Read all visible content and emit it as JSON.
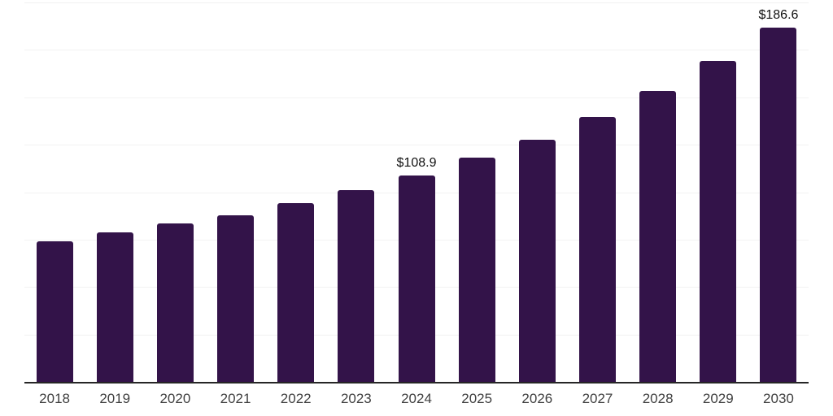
{
  "chart_data": {
    "type": "bar",
    "title": "",
    "categories": [
      "2018",
      "2019",
      "2020",
      "2021",
      "2022",
      "2023",
      "2024",
      "2025",
      "2026",
      "2027",
      "2028",
      "2029",
      "2030"
    ],
    "values": [
      74.2,
      79.0,
      83.7,
      88.0,
      94.3,
      101.2,
      108.9,
      118.1,
      127.7,
      139.6,
      153.3,
      169.0,
      186.6
    ],
    "data_labels": [
      {
        "category": "2024",
        "text": "$108.9"
      },
      {
        "category": "2030",
        "text": "$186.6"
      }
    ],
    "xlabel": "",
    "ylabel": "",
    "ylim": [
      0,
      200
    ],
    "gridline_step": 25,
    "grid": "horizontal",
    "legend_position": "none",
    "colors": {
      "bar": "#331349",
      "gridline": "#f2f2f2",
      "axis_line": "#262626",
      "tick_label": "#404040",
      "data_label": "#111111",
      "background": "#ffffff"
    }
  }
}
